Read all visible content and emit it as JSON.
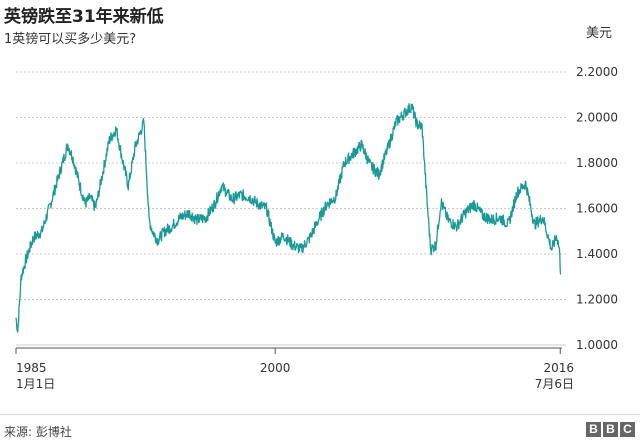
{
  "header": {
    "title": "英镑跌至31年来新低",
    "subtitle": "1英镑可以买多少美元?",
    "unit": "美元"
  },
  "footer": {
    "source": "来源: 彭博社",
    "logo_letters": [
      "B",
      "B",
      "C"
    ]
  },
  "colors": {
    "line": "#1a9a96",
    "grid": "#cccccc",
    "axis": "#555555"
  },
  "chart_data": {
    "type": "line",
    "title": "英镑跌至31年来新低",
    "subtitle": "1英镑可以买多少美元?",
    "ylabel": "美元",
    "xlabel": "",
    "ylim": [
      1.0,
      2.2
    ],
    "xlim": [
      1985.0,
      2016.6
    ],
    "yticks": [
      1.0,
      1.2,
      1.4,
      1.6,
      1.8,
      2.0,
      2.2
    ],
    "ytick_labels": [
      "1.0000",
      "1.2000",
      "1.4000",
      "1.6000",
      "1.8000",
      "2.0000",
      "2.2000"
    ],
    "xticks": [
      {
        "value": 1985.0,
        "label": "1985",
        "sublabel": "1月1日"
      },
      {
        "value": 2000.0,
        "label": "2000",
        "sublabel": ""
      },
      {
        "value": 2016.5,
        "label": "2016",
        "sublabel": "7月6日"
      }
    ],
    "grid": "horizontal",
    "series": [
      {
        "x": [
          1985.0,
          1985.1,
          1985.3,
          1985.6,
          1986.0,
          1986.5,
          1987.0,
          1987.5,
          1988.0,
          1988.3,
          1988.7,
          1989.0,
          1989.3,
          1989.6,
          1990.0,
          1990.4,
          1990.8,
          1991.2,
          1991.5,
          1991.9,
          1992.4,
          1992.7,
          1992.9,
          1993.2,
          1993.6,
          1994.0,
          1994.5,
          1995.0,
          1995.5,
          1996.0,
          1996.5,
          1996.9,
          1997.5,
          1998.0,
          1998.5,
          1999.0,
          1999.5,
          2000.0,
          2000.5,
          2001.0,
          2001.5,
          2002.0,
          2002.5,
          2003.0,
          2003.5,
          2004.0,
          2004.5,
          2005.0,
          2005.5,
          2006.0,
          2006.5,
          2007.0,
          2007.5,
          2007.9,
          2008.2,
          2008.5,
          2008.8,
          2009.0,
          2009.3,
          2009.6,
          2010.0,
          2010.5,
          2011.0,
          2011.5,
          2012.0,
          2012.5,
          2013.0,
          2013.5,
          2014.0,
          2014.5,
          2015.0,
          2015.5,
          2016.0,
          2016.3,
          2016.45,
          2016.52
        ],
        "values": [
          1.12,
          1.06,
          1.3,
          1.38,
          1.47,
          1.5,
          1.62,
          1.75,
          1.88,
          1.82,
          1.7,
          1.62,
          1.65,
          1.6,
          1.75,
          1.9,
          1.95,
          1.8,
          1.7,
          1.87,
          1.98,
          1.55,
          1.5,
          1.46,
          1.5,
          1.52,
          1.56,
          1.58,
          1.55,
          1.56,
          1.62,
          1.7,
          1.64,
          1.66,
          1.65,
          1.62,
          1.6,
          1.45,
          1.48,
          1.44,
          1.42,
          1.47,
          1.55,
          1.62,
          1.65,
          1.8,
          1.84,
          1.88,
          1.79,
          1.75,
          1.86,
          1.98,
          2.02,
          2.05,
          1.97,
          1.96,
          1.62,
          1.42,
          1.44,
          1.63,
          1.55,
          1.52,
          1.58,
          1.62,
          1.57,
          1.55,
          1.56,
          1.53,
          1.67,
          1.71,
          1.53,
          1.56,
          1.42,
          1.48,
          1.42,
          1.31
        ]
      }
    ]
  }
}
